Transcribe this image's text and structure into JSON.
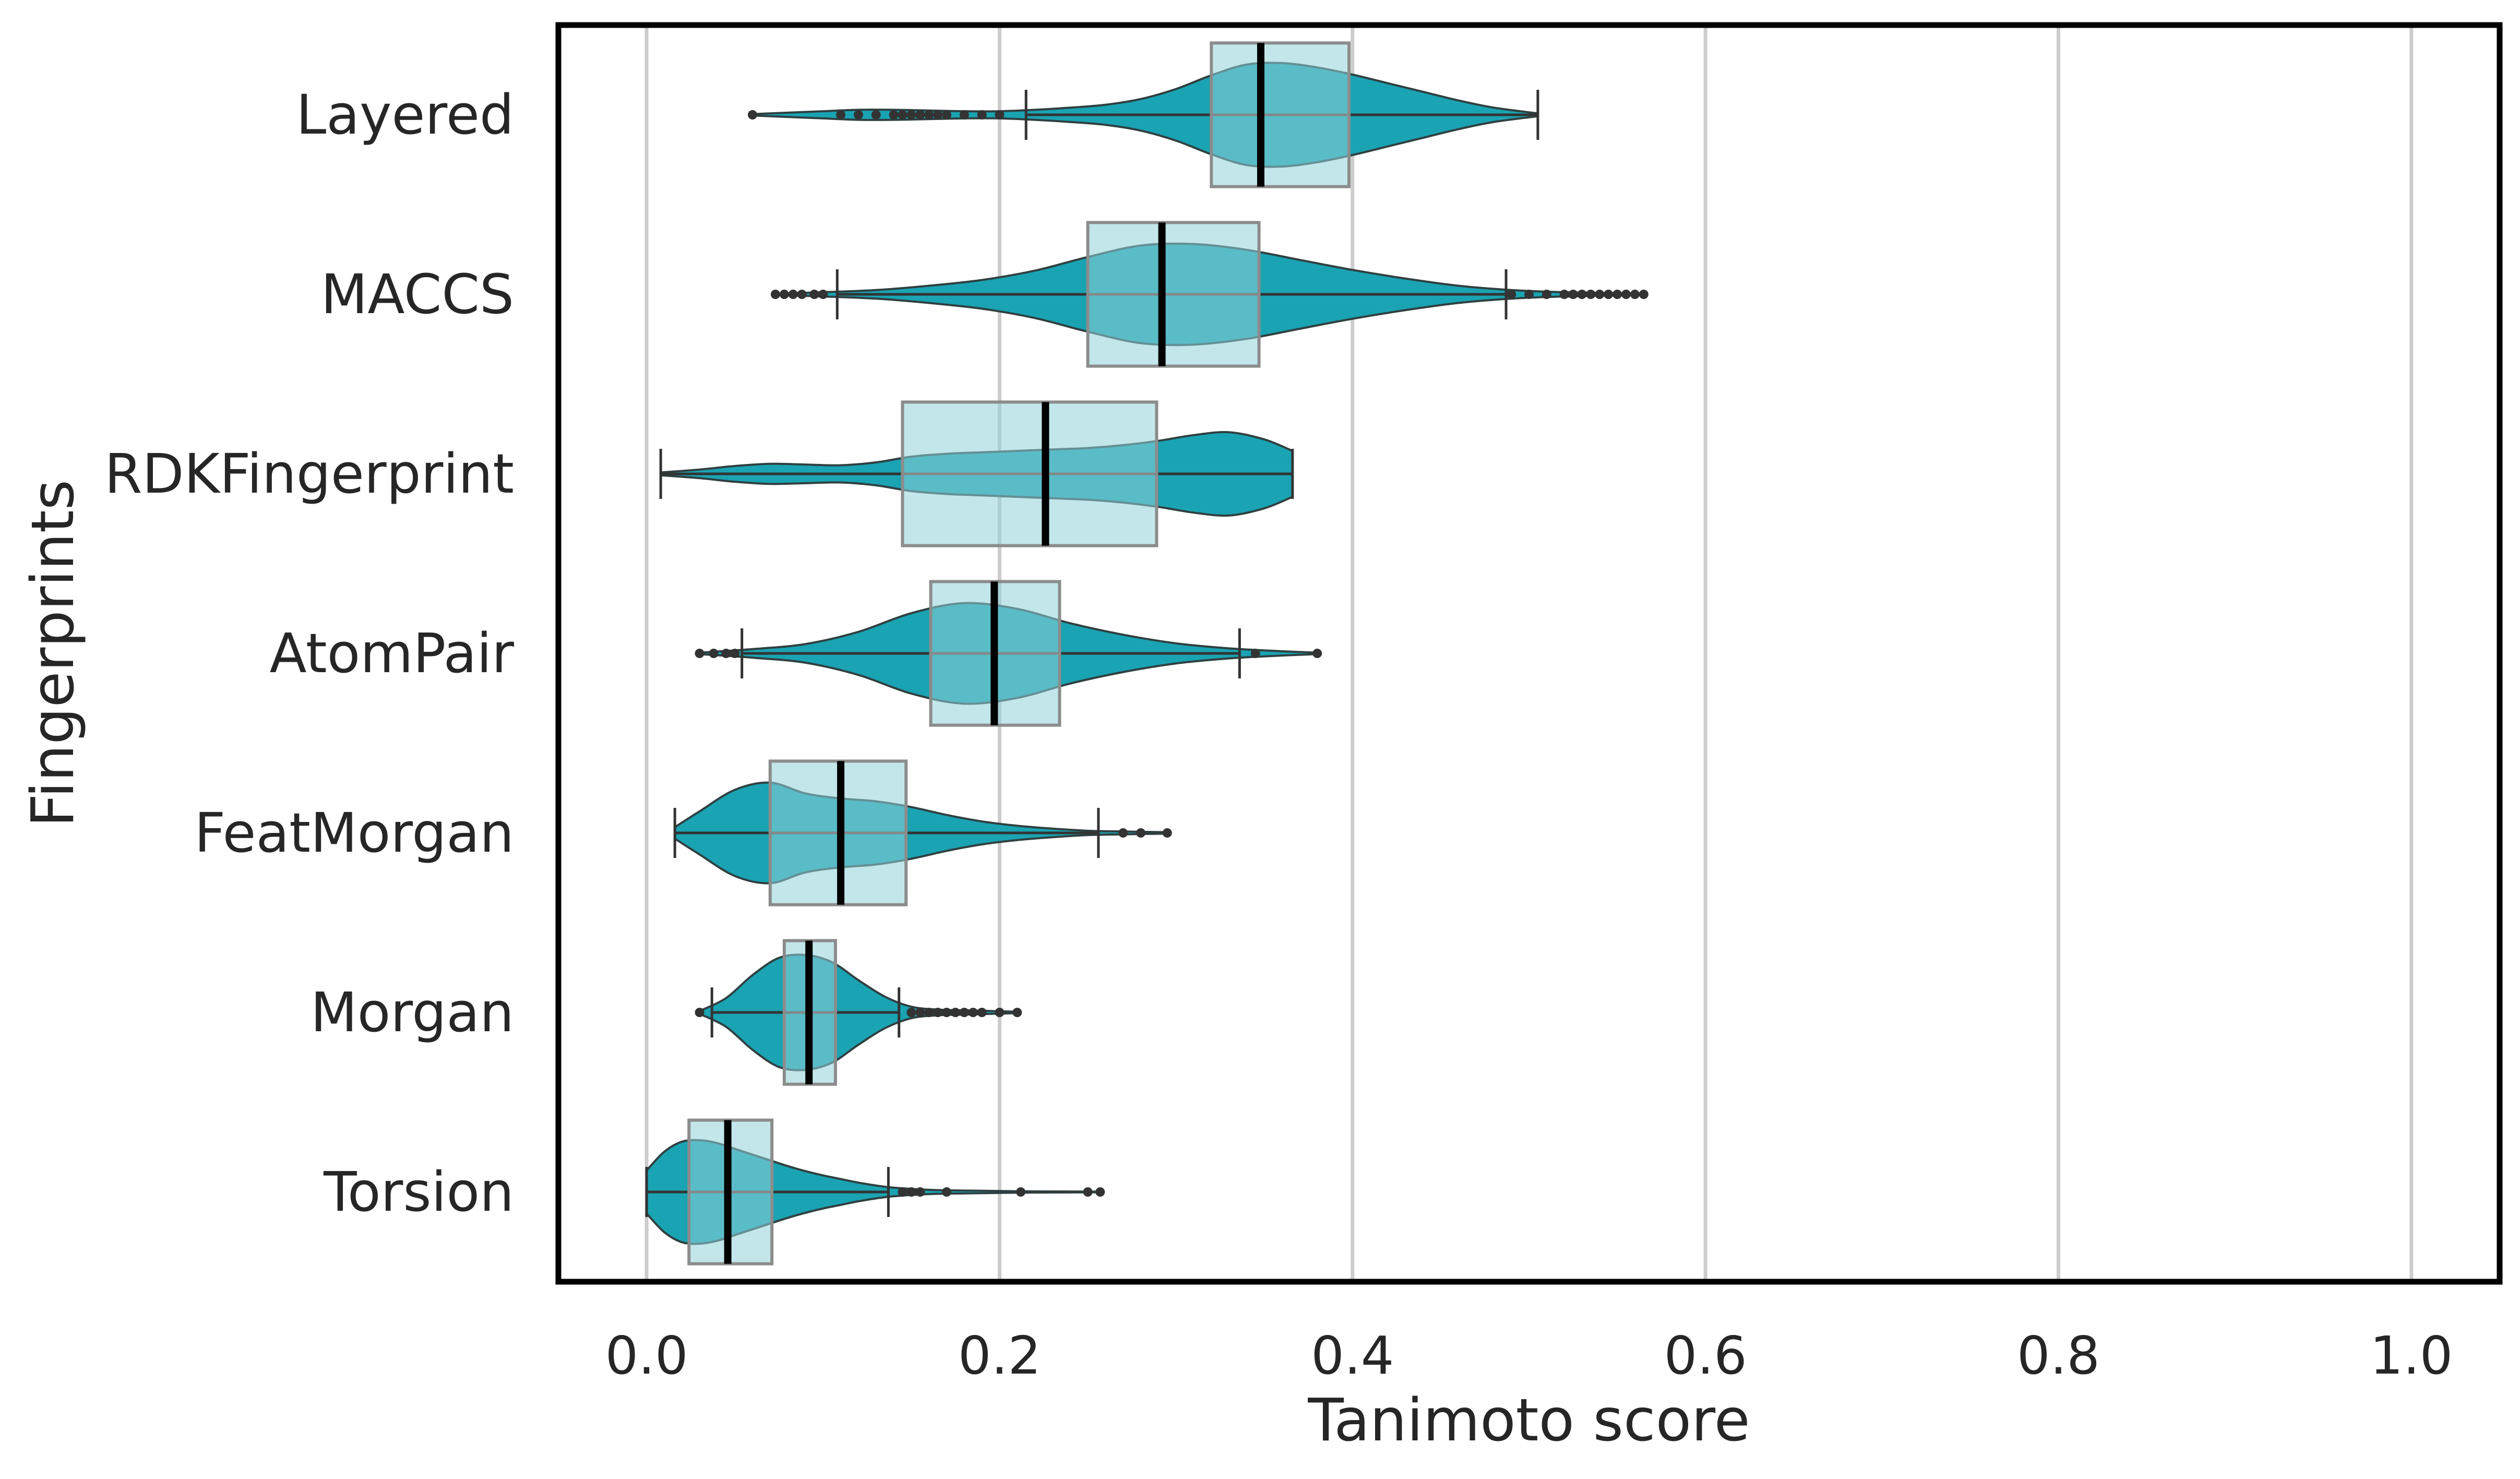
{
  "chart_data": {
    "type": "violin",
    "orientation": "horizontal",
    "xlabel": "Tanimoto score",
    "ylabel": "Fingerprints",
    "xlim": [
      -0.05,
      1.05
    ],
    "xticks": [
      0.0,
      0.2,
      0.4,
      0.6,
      0.8,
      1.0
    ],
    "xtick_labels": [
      "0.0",
      "0.2",
      "0.4",
      "0.6",
      "0.8",
      "1.0"
    ],
    "grid": "vertical",
    "colors": {
      "violin_fill": "#1aa3b2",
      "violin_edge": "#2f3f40",
      "box_fill": "#8fd1d8",
      "box_edge": "#8c8c8c",
      "median": "#000000",
      "grid": "#cccccc",
      "frame": "#000000",
      "points": "#333333"
    },
    "categories": [
      "Layered",
      "MACCS",
      "RDKFingerprint",
      "AtomPair",
      "FeatMorgan",
      "Morgan",
      "Torsion"
    ],
    "series": [
      {
        "category": "Layered",
        "whisker_low": 0.215,
        "q1": 0.32,
        "median": 0.348,
        "q3": 0.398,
        "whisker_high": 0.505,
        "outliers": [
          0.06,
          0.11,
          0.12,
          0.13,
          0.14,
          0.145,
          0.15,
          0.155,
          0.16,
          0.165,
          0.17,
          0.18,
          0.19,
          0.2
        ],
        "density_x": [
          0.06,
          0.08,
          0.1,
          0.12,
          0.14,
          0.16,
          0.18,
          0.2,
          0.22,
          0.24,
          0.26,
          0.28,
          0.3,
          0.32,
          0.34,
          0.36,
          0.38,
          0.4,
          0.42,
          0.44,
          0.46,
          0.48,
          0.505
        ],
        "density": [
          0.01,
          0.03,
          0.05,
          0.07,
          0.07,
          0.06,
          0.05,
          0.05,
          0.07,
          0.1,
          0.14,
          0.22,
          0.36,
          0.55,
          0.7,
          0.72,
          0.66,
          0.56,
          0.44,
          0.32,
          0.2,
          0.1,
          0.02
        ]
      },
      {
        "category": "MACCS",
        "whisker_low": 0.108,
        "q1": 0.25,
        "median": 0.292,
        "q3": 0.347,
        "whisker_high": 0.487,
        "outliers": [
          0.073,
          0.078,
          0.083,
          0.088,
          0.095,
          0.1,
          0.49,
          0.5,
          0.51,
          0.52,
          0.525,
          0.53,
          0.535,
          0.54,
          0.545,
          0.55,
          0.555,
          0.56,
          0.565
        ],
        "density_x": [
          0.073,
          0.1,
          0.13,
          0.16,
          0.19,
          0.22,
          0.25,
          0.28,
          0.31,
          0.34,
          0.37,
          0.4,
          0.43,
          0.46,
          0.49,
          0.52,
          0.565
        ],
        "density": [
          0.01,
          0.03,
          0.06,
          0.12,
          0.2,
          0.33,
          0.52,
          0.68,
          0.7,
          0.62,
          0.48,
          0.34,
          0.22,
          0.12,
          0.06,
          0.03,
          0.01
        ]
      },
      {
        "category": "RDKFingerprint",
        "whisker_low": 0.008,
        "q1": 0.145,
        "median": 0.226,
        "q3": 0.289,
        "whisker_high": 0.366,
        "outliers": [],
        "density_x": [
          0.008,
          0.03,
          0.05,
          0.07,
          0.09,
          0.11,
          0.13,
          0.15,
          0.17,
          0.19,
          0.21,
          0.23,
          0.25,
          0.27,
          0.29,
          0.31,
          0.33,
          0.35,
          0.366
        ],
        "density": [
          0.02,
          0.06,
          0.11,
          0.14,
          0.13,
          0.12,
          0.16,
          0.24,
          0.28,
          0.3,
          0.32,
          0.34,
          0.36,
          0.4,
          0.46,
          0.54,
          0.58,
          0.48,
          0.32
        ]
      },
      {
        "category": "AtomPair",
        "whisker_low": 0.054,
        "q1": 0.161,
        "median": 0.197,
        "q3": 0.234,
        "whisker_high": 0.336,
        "outliers": [
          0.03,
          0.038,
          0.045,
          0.05,
          0.345,
          0.38
        ],
        "density_x": [
          0.03,
          0.06,
          0.09,
          0.12,
          0.15,
          0.18,
          0.21,
          0.24,
          0.27,
          0.3,
          0.33,
          0.36,
          0.38
        ],
        "density": [
          0.01,
          0.06,
          0.13,
          0.3,
          0.56,
          0.7,
          0.62,
          0.42,
          0.26,
          0.14,
          0.07,
          0.03,
          0.01
        ]
      },
      {
        "category": "FeatMorgan",
        "whisker_low": 0.016,
        "q1": 0.07,
        "median": 0.11,
        "q3": 0.147,
        "whisker_high": 0.256,
        "outliers": [
          0.27,
          0.28,
          0.295
        ],
        "density_x": [
          0.016,
          0.03,
          0.05,
          0.07,
          0.09,
          0.11,
          0.13,
          0.15,
          0.17,
          0.19,
          0.21,
          0.23,
          0.25,
          0.27,
          0.295
        ],
        "density": [
          0.08,
          0.3,
          0.6,
          0.7,
          0.55,
          0.48,
          0.44,
          0.36,
          0.25,
          0.16,
          0.1,
          0.06,
          0.03,
          0.02,
          0.01
        ]
      },
      {
        "category": "Morgan",
        "whisker_low": 0.037,
        "q1": 0.078,
        "median": 0.092,
        "q3": 0.107,
        "whisker_high": 0.143,
        "outliers": [
          0.03,
          0.15,
          0.155,
          0.16,
          0.165,
          0.17,
          0.175,
          0.18,
          0.185,
          0.19,
          0.2,
          0.21
        ],
        "density_x": [
          0.03,
          0.045,
          0.06,
          0.075,
          0.09,
          0.105,
          0.12,
          0.135,
          0.15,
          0.165,
          0.18,
          0.195,
          0.21
        ],
        "density": [
          0.02,
          0.2,
          0.52,
          0.76,
          0.8,
          0.7,
          0.45,
          0.22,
          0.08,
          0.04,
          0.03,
          0.02,
          0.01
        ]
      },
      {
        "category": "Torsion",
        "whisker_low": 0.0,
        "q1": 0.024,
        "median": 0.046,
        "q3": 0.071,
        "whisker_high": 0.137,
        "outliers": [
          0.145,
          0.15,
          0.155,
          0.17,
          0.212,
          0.25,
          0.257
        ],
        "density_x": [
          0.0,
          0.01,
          0.02,
          0.03,
          0.04,
          0.05,
          0.06,
          0.07,
          0.08,
          0.09,
          0.1,
          0.11,
          0.12,
          0.13,
          0.14,
          0.16,
          0.18,
          0.21,
          0.257
        ],
        "density": [
          0.3,
          0.56,
          0.7,
          0.72,
          0.68,
          0.6,
          0.52,
          0.44,
          0.36,
          0.29,
          0.23,
          0.18,
          0.13,
          0.09,
          0.06,
          0.03,
          0.02,
          0.01,
          0.005
        ]
      }
    ]
  }
}
